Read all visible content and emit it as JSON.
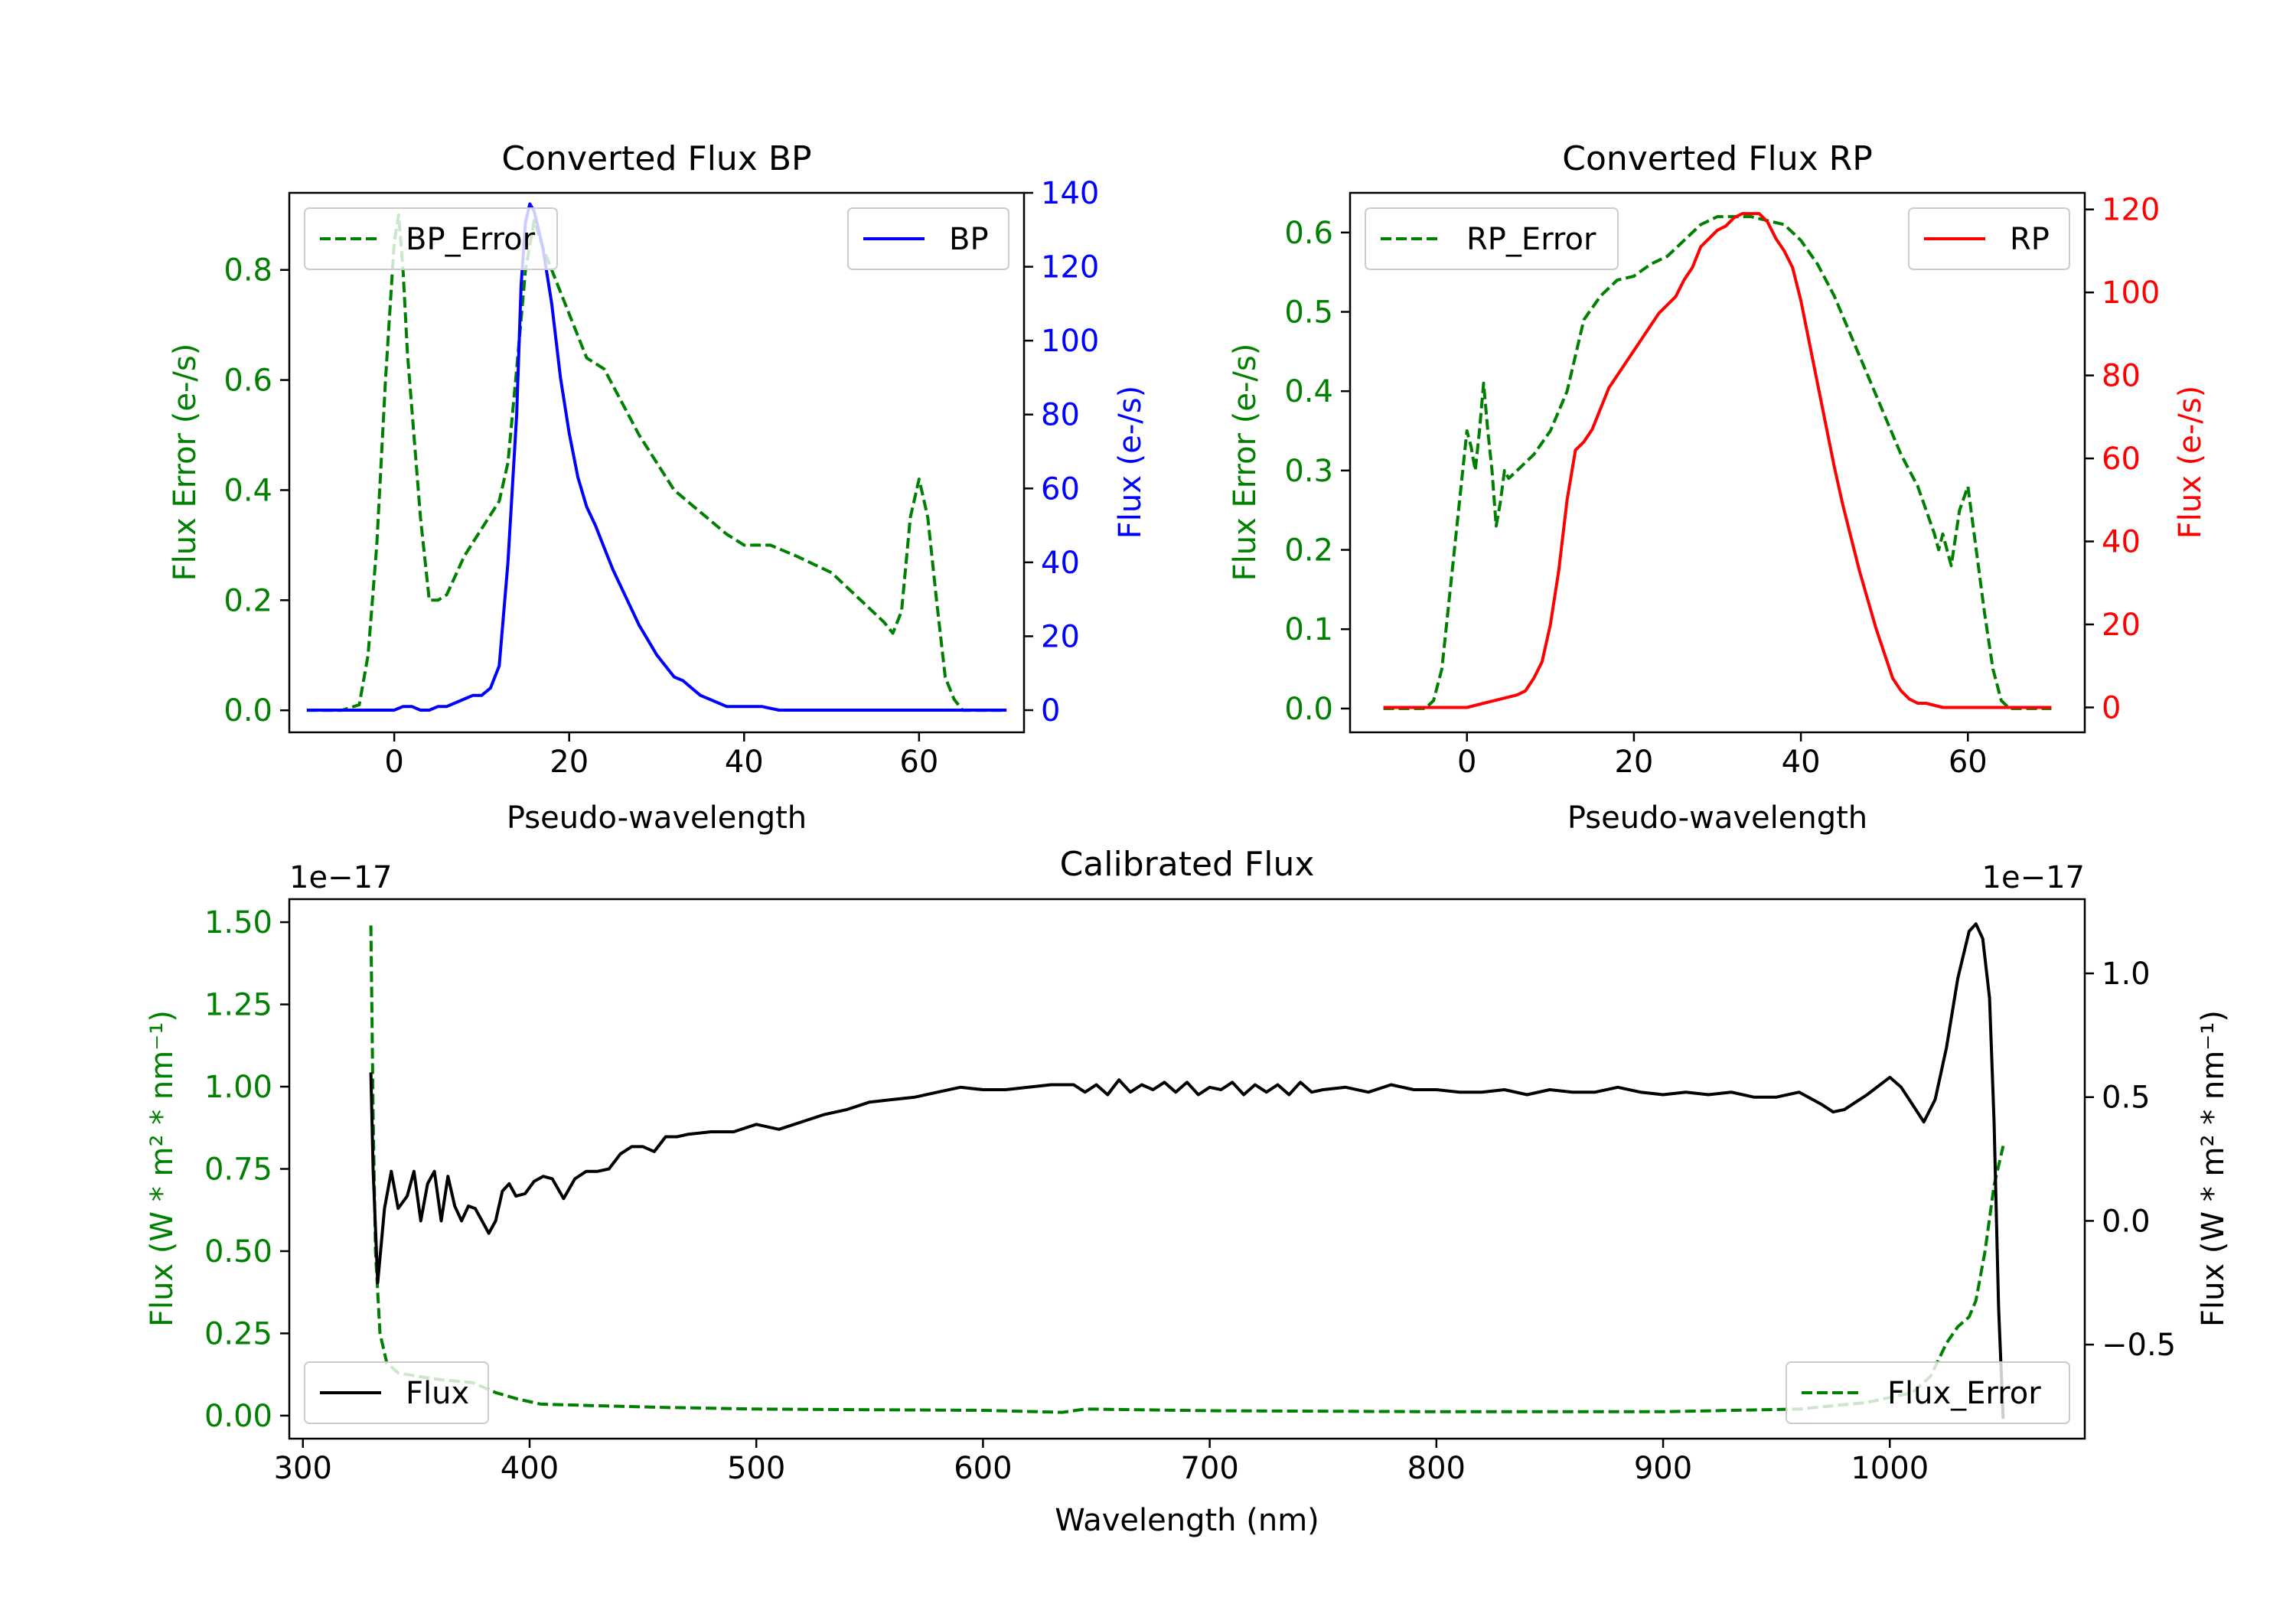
{
  "colors": {
    "green": "#008000",
    "blue": "#0000ff",
    "red": "#ff0000",
    "black": "#000000"
  },
  "chart_data": [
    {
      "id": "bp",
      "type": "line",
      "title": "Converted Flux BP",
      "xlabel": "Pseudo-wavelength",
      "ylabel_left": "Flux Error (e-/s)",
      "ylabel_right": "Flux (e-/s)",
      "xlim": [
        -12,
        72
      ],
      "ylim_left": [
        -0.04,
        0.94
      ],
      "ylim_right": [
        -6,
        140
      ],
      "xticks": [
        0,
        20,
        40,
        60
      ],
      "xtick_labels": [
        "0",
        "20",
        "40",
        "60"
      ],
      "yticks_left": [
        0.0,
        0.2,
        0.4,
        0.6,
        0.8
      ],
      "ytick_labels_left": [
        "0.0",
        "0.2",
        "0.4",
        "0.6",
        "0.8"
      ],
      "yticks_right": [
        0,
        20,
        40,
        60,
        80,
        100,
        120,
        140
      ],
      "ytick_labels_right": [
        "0",
        "20",
        "40",
        "60",
        "80",
        "100",
        "120",
        "140"
      ],
      "legend_left": "BP_Error",
      "legend_right": "BP",
      "legend_placement": [
        "upper-left",
        "upper-right"
      ],
      "series": [
        {
          "name": "BP_Error",
          "axis": "left",
          "style": "dashed",
          "color": "#008000",
          "x": [
            -10,
            -6,
            -4,
            -3,
            -2,
            -1,
            0,
            0.5,
            1,
            1.5,
            2,
            3,
            4,
            5,
            6,
            8,
            10,
            12,
            13,
            14,
            15,
            16,
            17,
            18,
            20,
            22,
            24,
            26,
            28,
            30,
            32,
            35,
            38,
            40,
            43,
            46,
            50,
            52,
            54,
            56,
            57,
            58,
            59,
            60,
            61,
            62,
            63,
            64,
            65,
            70
          ],
          "values": [
            0.0,
            0.0,
            0.01,
            0.1,
            0.3,
            0.6,
            0.85,
            0.9,
            0.8,
            0.65,
            0.55,
            0.35,
            0.2,
            0.2,
            0.21,
            0.28,
            0.33,
            0.38,
            0.45,
            0.62,
            0.8,
            0.89,
            0.84,
            0.8,
            0.72,
            0.64,
            0.62,
            0.56,
            0.5,
            0.45,
            0.4,
            0.36,
            0.32,
            0.3,
            0.3,
            0.28,
            0.25,
            0.22,
            0.19,
            0.16,
            0.14,
            0.18,
            0.35,
            0.42,
            0.35,
            0.2,
            0.06,
            0.02,
            0.0,
            0.0
          ]
        },
        {
          "name": "BP",
          "axis": "right",
          "style": "solid",
          "color": "#0000ff",
          "x": [
            -10,
            -3,
            0,
            1,
            2,
            3,
            4,
            5,
            6,
            7,
            8,
            9,
            10,
            11,
            12,
            13,
            14,
            14.5,
            15,
            15.5,
            16,
            17,
            18,
            19,
            20,
            21,
            22,
            23,
            24,
            25,
            26,
            27,
            28,
            29,
            30,
            31,
            32,
            33,
            34,
            35,
            36,
            38,
            40,
            42,
            44,
            46,
            48,
            50,
            55,
            60,
            65,
            70
          ],
          "values": [
            0,
            0,
            0,
            1,
            1,
            0,
            0,
            1,
            1,
            2,
            3,
            4,
            4,
            6,
            12,
            40,
            80,
            115,
            132,
            137,
            135,
            125,
            110,
            90,
            75,
            63,
            55,
            50,
            44,
            38,
            33,
            28,
            23,
            19,
            15,
            12,
            9,
            8,
            6,
            4,
            3,
            1,
            1,
            1,
            0,
            0,
            0,
            0,
            0,
            0,
            0,
            0
          ]
        }
      ]
    },
    {
      "id": "rp",
      "type": "line",
      "title": "Converted Flux RP",
      "xlabel": "Pseudo-wavelength",
      "ylabel_left": "Flux Error (e-/s)",
      "ylabel_right": "Flux (e-/s)",
      "xlim": [
        -14,
        74
      ],
      "ylim_left": [
        -0.03,
        0.65
      ],
      "ylim_right": [
        -6,
        124
      ],
      "xticks": [
        0,
        20,
        40,
        60
      ],
      "xtick_labels": [
        "0",
        "20",
        "40",
        "60"
      ],
      "yticks_left": [
        0.0,
        0.1,
        0.2,
        0.3,
        0.4,
        0.5,
        0.6
      ],
      "ytick_labels_left": [
        "0.0",
        "0.1",
        "0.2",
        "0.3",
        "0.4",
        "0.5",
        "0.6"
      ],
      "yticks_right": [
        0,
        20,
        40,
        60,
        80,
        100,
        120
      ],
      "ytick_labels_right": [
        "0",
        "20",
        "40",
        "60",
        "80",
        "100",
        "120"
      ],
      "legend_left": "RP_Error",
      "legend_right": "RP",
      "legend_placement": [
        "upper-left",
        "upper-right"
      ],
      "series": [
        {
          "name": "RP_Error",
          "axis": "left",
          "style": "dashed",
          "color": "#008000",
          "x": [
            -10,
            -5,
            -4,
            -3,
            -2,
            -1,
            0,
            0.5,
            1,
            1.5,
            2,
            2.5,
            3,
            3.5,
            4,
            4.5,
            5,
            6,
            7,
            8,
            10,
            12,
            14,
            16,
            18,
            20,
            22,
            24,
            26,
            28,
            30,
            32,
            34,
            36,
            38,
            40,
            42,
            44,
            46,
            48,
            50,
            52,
            54,
            55,
            56,
            56.5,
            57,
            58,
            59,
            60,
            61,
            62,
            63,
            64,
            65,
            70
          ],
          "values": [
            0.0,
            0.0,
            0.01,
            0.05,
            0.15,
            0.25,
            0.35,
            0.33,
            0.3,
            0.35,
            0.41,
            0.35,
            0.3,
            0.23,
            0.26,
            0.3,
            0.29,
            0.3,
            0.31,
            0.32,
            0.35,
            0.4,
            0.49,
            0.52,
            0.54,
            0.545,
            0.56,
            0.57,
            0.59,
            0.61,
            0.62,
            0.62,
            0.62,
            0.615,
            0.61,
            0.59,
            0.56,
            0.52,
            0.47,
            0.42,
            0.37,
            0.32,
            0.28,
            0.25,
            0.22,
            0.2,
            0.22,
            0.18,
            0.25,
            0.28,
            0.2,
            0.12,
            0.05,
            0.01,
            0.0,
            0.0
          ]
        },
        {
          "name": "RP",
          "axis": "right",
          "style": "solid",
          "color": "#ff0000",
          "x": [
            -10,
            -3,
            0,
            2,
            4,
            6,
            7,
            8,
            9,
            10,
            11,
            12,
            13,
            14,
            15,
            16,
            17,
            18,
            19,
            20,
            21,
            22,
            23,
            24,
            25,
            26,
            27,
            28,
            29,
            30,
            31,
            32,
            33,
            34,
            35,
            36,
            37,
            38,
            39,
            40,
            41,
            42,
            43,
            44,
            45,
            46,
            47,
            48,
            49,
            50,
            51,
            52,
            53,
            54,
            55,
            57,
            60,
            65,
            70
          ],
          "values": [
            0,
            0,
            0,
            1,
            2,
            3,
            4,
            7,
            11,
            20,
            33,
            50,
            62,
            64,
            67,
            72,
            77,
            80,
            83,
            86,
            89,
            92,
            95,
            97,
            99,
            103,
            106,
            111,
            113,
            115,
            116,
            118,
            119,
            119,
            119,
            117,
            113,
            110,
            106,
            98,
            88,
            78,
            68,
            58,
            49,
            41,
            33,
            26,
            19,
            13,
            7,
            4,
            2,
            1,
            1,
            0,
            0,
            0,
            0
          ]
        }
      ]
    },
    {
      "id": "cal",
      "type": "line",
      "title": "Calibrated Flux",
      "xlabel": "Wavelength (nm)",
      "ylabel_left": "Flux (W * m² * nm⁻¹)",
      "ylabel_right": "Flux (W * m² * nm⁻¹)",
      "offset_left": "1e−17",
      "offset_right": "1e−17",
      "xlim": [
        294,
        1086
      ],
      "ylim_left": [
        -0.07,
        1.57
      ],
      "ylim_right": [
        -0.88,
        1.3
      ],
      "xticks": [
        300,
        400,
        500,
        600,
        700,
        800,
        900,
        1000
      ],
      "xtick_labels": [
        "300",
        "400",
        "500",
        "600",
        "700",
        "800",
        "900",
        "1000"
      ],
      "yticks_left": [
        0.0,
        0.25,
        0.5,
        0.75,
        1.0,
        1.25,
        1.5
      ],
      "ytick_labels_left": [
        "0.00",
        "0.25",
        "0.50",
        "0.75",
        "1.00",
        "1.25",
        "1.50"
      ],
      "yticks_right": [
        -0.5,
        0.0,
        0.5,
        1.0
      ],
      "ytick_labels_right": [
        "−0.5",
        "0.0",
        "0.5",
        "1.0"
      ],
      "legend_left": "Flux",
      "legend_right": "Flux_Error",
      "legend_placement": [
        "lower-left",
        "lower-right"
      ],
      "series": [
        {
          "name": "Flux_Error",
          "axis": "left",
          "style": "dashed",
          "color": "#008000",
          "x": [
            330,
            330.5,
            331,
            332,
            334,
            337,
            342,
            350,
            360,
            375,
            385,
            395,
            405,
            430,
            460,
            500,
            550,
            600,
            635,
            645,
            700,
            800,
            900,
            960,
            990,
            1010,
            1018,
            1025,
            1030,
            1035,
            1038,
            1042,
            1046,
            1050
          ],
          "values": [
            1.49,
            1.2,
            0.9,
            0.5,
            0.25,
            0.16,
            0.13,
            0.12,
            0.11,
            0.1,
            0.07,
            0.05,
            0.035,
            0.03,
            0.025,
            0.02,
            0.018,
            0.016,
            0.01,
            0.02,
            0.015,
            0.012,
            0.012,
            0.02,
            0.04,
            0.07,
            0.12,
            0.22,
            0.27,
            0.3,
            0.35,
            0.5,
            0.7,
            0.82
          ]
        },
        {
          "name": "Flux",
          "axis": "right",
          "style": "solid",
          "color": "#000000",
          "x": [
            330,
            331,
            333,
            336,
            339,
            342,
            346,
            349,
            352,
            355,
            358,
            361,
            364,
            367,
            370,
            373,
            376,
            379,
            382,
            385,
            388,
            391,
            394,
            398,
            402,
            406,
            410,
            415,
            420,
            425,
            430,
            435,
            440,
            445,
            450,
            455,
            460,
            465,
            470,
            480,
            490,
            500,
            510,
            520,
            530,
            540,
            550,
            560,
            570,
            580,
            590,
            600,
            610,
            620,
            630,
            640,
            645,
            650,
            655,
            660,
            665,
            670,
            675,
            680,
            685,
            690,
            695,
            700,
            705,
            710,
            715,
            720,
            725,
            730,
            735,
            740,
            745,
            750,
            760,
            770,
            780,
            790,
            800,
            810,
            820,
            830,
            840,
            850,
            860,
            870,
            880,
            890,
            900,
            910,
            920,
            930,
            940,
            950,
            960,
            970,
            975,
            980,
            990,
            1000,
            1005,
            1010,
            1015,
            1020,
            1025,
            1030,
            1035,
            1038,
            1041,
            1044,
            1046,
            1048,
            1050
          ],
          "values": [
            0.6,
            0.2,
            -0.25,
            0.05,
            0.2,
            0.05,
            0.1,
            0.2,
            0.0,
            0.15,
            0.2,
            0.0,
            0.18,
            0.06,
            0.0,
            0.06,
            0.05,
            0.0,
            -0.05,
            0.0,
            0.12,
            0.15,
            0.1,
            0.11,
            0.16,
            0.18,
            0.17,
            0.09,
            0.17,
            0.2,
            0.2,
            0.21,
            0.27,
            0.3,
            0.3,
            0.28,
            0.34,
            0.34,
            0.35,
            0.36,
            0.36,
            0.39,
            0.37,
            0.4,
            0.43,
            0.45,
            0.48,
            0.49,
            0.5,
            0.52,
            0.54,
            0.53,
            0.53,
            0.54,
            0.55,
            0.55,
            0.52,
            0.55,
            0.51,
            0.57,
            0.52,
            0.55,
            0.53,
            0.56,
            0.52,
            0.56,
            0.51,
            0.54,
            0.53,
            0.56,
            0.51,
            0.55,
            0.52,
            0.55,
            0.51,
            0.56,
            0.52,
            0.53,
            0.54,
            0.52,
            0.55,
            0.53,
            0.53,
            0.52,
            0.52,
            0.53,
            0.51,
            0.53,
            0.52,
            0.52,
            0.54,
            0.52,
            0.51,
            0.52,
            0.51,
            0.52,
            0.5,
            0.5,
            0.52,
            0.47,
            0.44,
            0.45,
            0.51,
            0.58,
            0.54,
            0.47,
            0.4,
            0.49,
            0.7,
            0.98,
            1.17,
            1.2,
            1.14,
            0.9,
            0.4,
            -0.35,
            -0.8
          ]
        }
      ]
    }
  ]
}
